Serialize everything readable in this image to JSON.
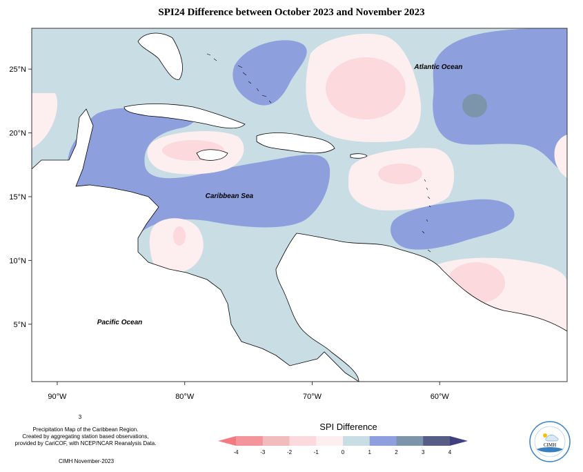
{
  "title": "SPI24 Difference between October 2023 and November 2023",
  "map": {
    "lon_range": [
      -92,
      -50
    ],
    "lat_range": [
      0.5,
      28.2
    ],
    "lon_ticks": [
      -90,
      -80,
      -70,
      -60
    ],
    "lat_ticks": [
      5,
      10,
      15,
      20,
      25
    ],
    "lon_tick_labels": [
      "90°W",
      "80°W",
      "70°W",
      "60°W"
    ],
    "lat_tick_labels": [
      "5°N",
      "10°N",
      "15°N",
      "20°N",
      "25°N"
    ],
    "ocean_labels": [
      {
        "text": "Atlantic Ocean",
        "lon": -60.1,
        "lat": 25.0
      },
      {
        "text": "Caribbean Sea",
        "lon": -76.5,
        "lat": 14.9
      },
      {
        "text": "Pacific Ocean",
        "lon": -85.1,
        "lat": 5.0
      }
    ]
  },
  "legend": {
    "title": "SPI Difference",
    "tick_labels": [
      "-4",
      "-3",
      "-2",
      "-1",
      "0",
      "1",
      "2",
      "3",
      "4"
    ],
    "colors": [
      "#f4959b",
      "#f2bcbf",
      "#fbd9dd",
      "#fdeef0",
      "#c9dde4",
      "#8d9fdc",
      "#7d95ab",
      "#565e86"
    ],
    "low_arrow_color": "#f47a82",
    "high_arrow_color": "#3f3f80"
  },
  "footer": {
    "superscript_note": "3",
    "description_lines": [
      "Precipitation Map of the Caribbean Region.",
      "Created by aggregating station based observations,",
      "provided by CariCOF, with NCEP/NCAR Reanalysis Data."
    ],
    "credit": "CIMH November-2023"
  },
  "logo": {
    "text": "CIMH"
  },
  "colors": {
    "background_class": "#c9dde4",
    "wet_class": "#8d9fdc",
    "very_wet_class": "#7d95ab",
    "dry_class": "#fdeef0",
    "moderately_dry_class": "#fbd9dd",
    "land": "#ffffff"
  }
}
